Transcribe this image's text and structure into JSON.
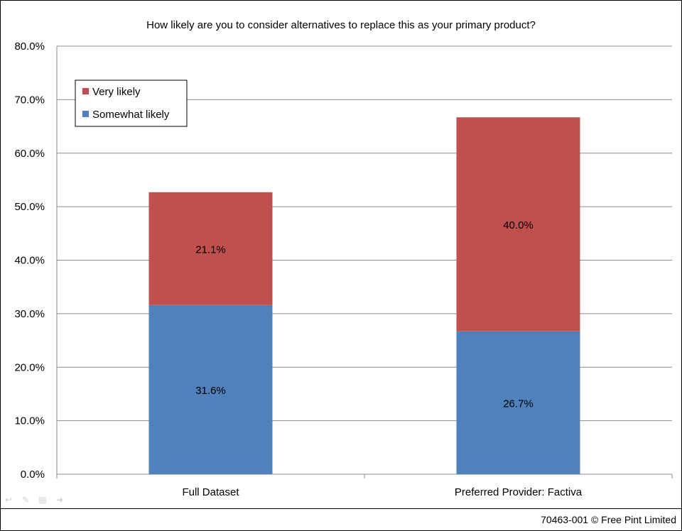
{
  "chart_data": {
    "type": "bar",
    "stacked": true,
    "title": "How  likely are you to consider alternatives to replace this as your primary product?",
    "categories": [
      "Full Dataset",
      "Preferred Provider: Factiva"
    ],
    "series": [
      {
        "name": "Somewhat likely",
        "values": [
          31.6,
          26.7
        ],
        "labels": [
          "31.6%",
          "26.7%"
        ],
        "color": "#4f81bd"
      },
      {
        "name": "Very likely",
        "values": [
          21.1,
          40.0
        ],
        "labels": [
          "21.1%",
          "40.0%"
        ],
        "color": "#c0504d"
      }
    ],
    "ylim": [
      0,
      80
    ],
    "yticks": [
      "0.0%",
      "10.0%",
      "20.0%",
      "30.0%",
      "40.0%",
      "50.0%",
      "60.0%",
      "70.0%",
      "80.0%"
    ],
    "grid": true,
    "legend": {
      "placement": "top-left",
      "entries": [
        {
          "name": "Very likely",
          "color": "#c0504d"
        },
        {
          "name": "Somewhat likely",
          "color": "#4f81bd"
        }
      ]
    }
  },
  "footer": {
    "text": "70463-001 © Free Pint Limited"
  },
  "toolbar": {
    "icons": [
      "back-arrow-icon",
      "pen-icon",
      "menu-icon",
      "forward-arrow-icon"
    ]
  }
}
